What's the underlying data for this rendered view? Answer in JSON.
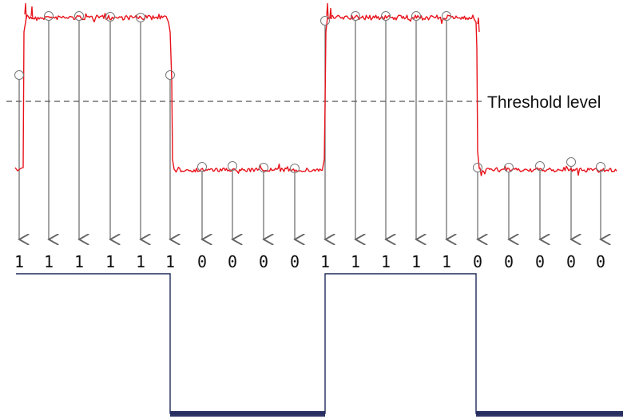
{
  "threshold_label": "Threshold level",
  "bits": [
    "1",
    "1",
    "1",
    "1",
    "1",
    "1",
    "0",
    "0",
    "0",
    "0",
    "1",
    "1",
    "1",
    "1",
    "1",
    "0",
    "0",
    "0",
    "0",
    "0"
  ],
  "colors": {
    "signal": "#e8121b",
    "threshold_line": "#555555",
    "sample_line": "#666666",
    "sample_marker": "#777777",
    "digital_line": "#1f2a5a",
    "digital_low_fill": "#2e3466"
  }
}
